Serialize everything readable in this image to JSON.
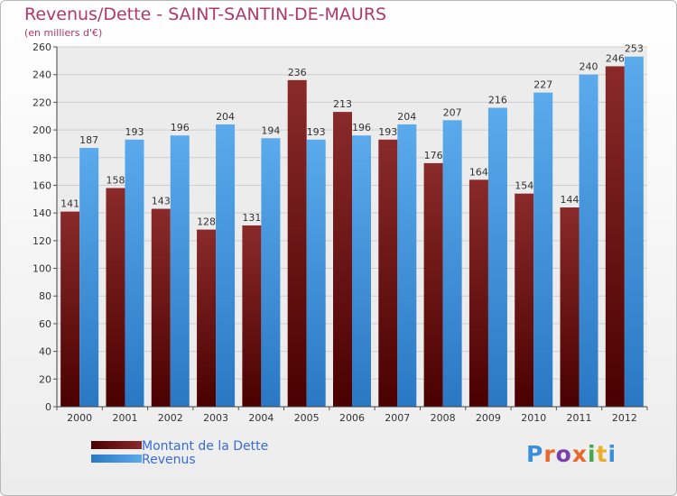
{
  "chart_data": {
    "type": "bar",
    "title": "Revenus/Dette - SAINT-SANTIN-DE-MAURS",
    "subtitle": "(en milliers d'€)",
    "categories": [
      "2000",
      "2001",
      "2002",
      "2003",
      "2004",
      "2005",
      "2006",
      "2007",
      "2008",
      "2009",
      "2010",
      "2011",
      "2012"
    ],
    "series": [
      {
        "name": "Montant de la Dette",
        "values": [
          141,
          158,
          143,
          128,
          131,
          236,
          213,
          193,
          176,
          164,
          154,
          144,
          246
        ],
        "color": "#7a1515"
      },
      {
        "name": "Revenus",
        "values": [
          187,
          193,
          196,
          204,
          194,
          193,
          196,
          204,
          207,
          216,
          227,
          240,
          253
        ],
        "color": "#3d8ed9"
      }
    ],
    "ylim": [
      0,
      260
    ],
    "ytick_step": 20,
    "grid": true,
    "legend_position": "bottom-left",
    "xlabel": "",
    "ylabel": ""
  },
  "branding": {
    "logo_text": "Proxiti",
    "logo_colors": [
      "#3a8fd8",
      "#e8672a",
      "#7a3fa8",
      "#e8672a",
      "#47a84a",
      "#e8b02a",
      "#3a8fd8"
    ]
  }
}
